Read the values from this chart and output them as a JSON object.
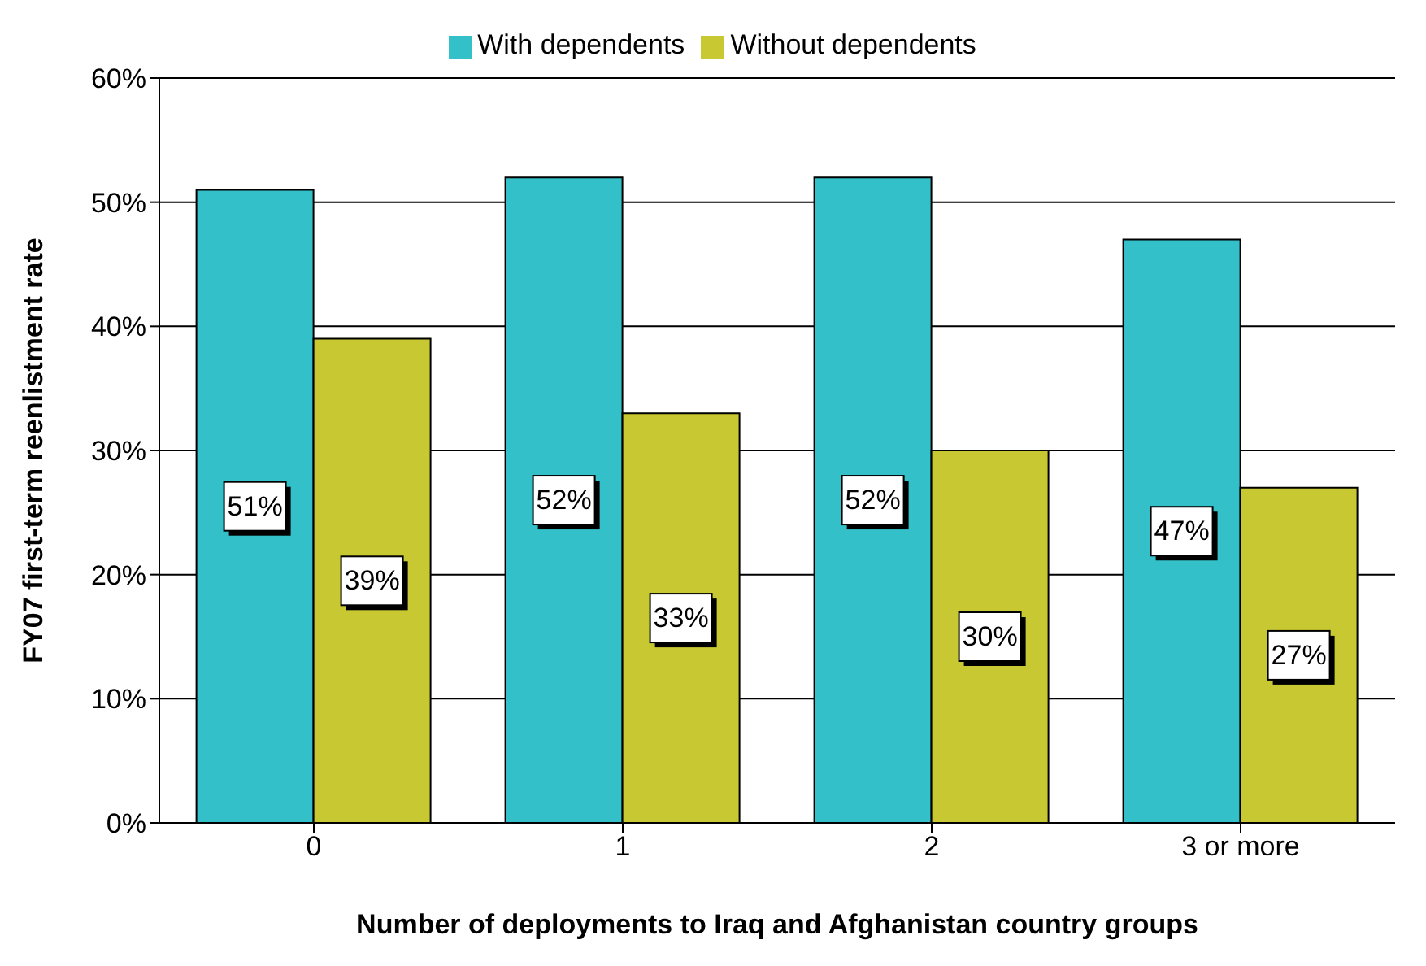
{
  "chart_data": {
    "type": "bar",
    "xlabel": "Number of deployments to Iraq and Afghanistan country groups",
    "ylabel": "FY07 first-term reenlistment rate",
    "categories": [
      "0",
      "1",
      "2",
      "3 or more"
    ],
    "series": [
      {
        "name": "With dependents",
        "color": "#33c0c8",
        "values": [
          51,
          52,
          52,
          47
        ],
        "value_labels": [
          "51%",
          "52%",
          "52%",
          "47%"
        ]
      },
      {
        "name": "Without dependents",
        "color": "#c8c832",
        "values": [
          39,
          33,
          30,
          27
        ],
        "value_labels": [
          "39%",
          "33%",
          "30%",
          "27%"
        ]
      }
    ],
    "ylim": [
      0,
      60
    ],
    "yticks": [
      {
        "value": 0,
        "label": "0%"
      },
      {
        "value": 10,
        "label": "10%"
      },
      {
        "value": 20,
        "label": "20%"
      },
      {
        "value": 30,
        "label": "30%"
      },
      {
        "value": 40,
        "label": "40%"
      },
      {
        "value": 50,
        "label": "50%"
      },
      {
        "value": 60,
        "label": "60%"
      }
    ],
    "grid": "y",
    "legend": "top"
  }
}
